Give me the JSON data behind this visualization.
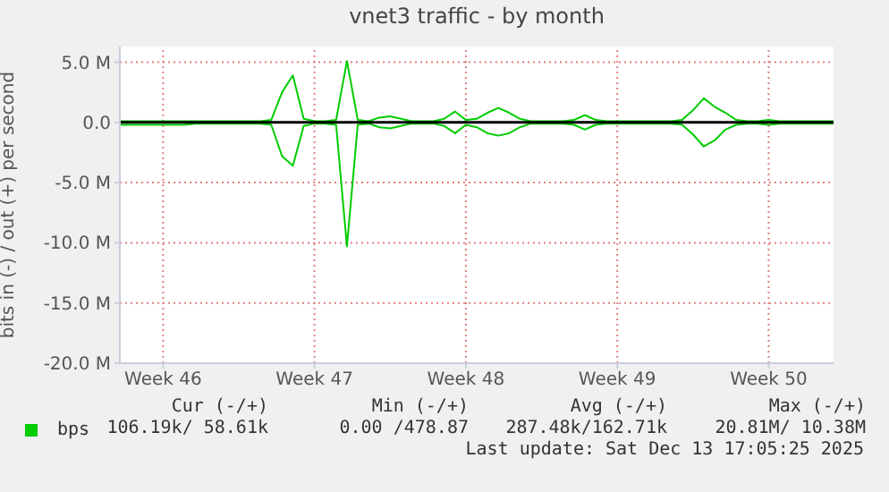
{
  "chart_data": {
    "type": "line",
    "title": "vnet3 traffic - by month",
    "ylabel": "bits in (-) / out (+) per second",
    "categories": [
      null,
      null,
      null,
      null,
      "Week 46",
      null,
      null,
      null,
      null,
      null,
      null,
      null,
      null,
      null,
      null,
      null,
      null,
      null,
      "Week 47",
      null,
      null,
      null,
      null,
      null,
      null,
      null,
      null,
      null,
      null,
      null,
      null,
      null,
      "Week 48",
      null,
      null,
      null,
      null,
      null,
      null,
      null,
      null,
      null,
      null,
      null,
      null,
      null,
      "Week 49",
      null,
      null,
      null,
      null,
      null,
      null,
      null,
      null,
      null,
      null,
      null,
      null,
      null,
      "Week 50",
      null,
      null,
      null,
      null,
      null,
      null
    ],
    "series": [
      {
        "name": "bps",
        "color": "#00cc00",
        "values": [
          0.1,
          0.1,
          0.1,
          0.1,
          0.1,
          0.1,
          0.1,
          0.1,
          0.1,
          0.1,
          0.1,
          0.1,
          0.1,
          0.1,
          0.2,
          2.5,
          3.9,
          0.3,
          0.1,
          0.1,
          0.2,
          5.1,
          0.2,
          0.1,
          0.4,
          0.5,
          0.3,
          0.1,
          0.1,
          0.1,
          0.3,
          0.9,
          0.2,
          0.3,
          0.8,
          1.2,
          0.8,
          0.3,
          0.1,
          0.1,
          0.1,
          0.1,
          0.2,
          0.6,
          0.2,
          0.1,
          0.1,
          0.1,
          0.1,
          0.1,
          0.1,
          0.1,
          0.2,
          1.0,
          2.0,
          1.3,
          0.8,
          0.2,
          0.1,
          0.1,
          0.2,
          0.1,
          0.1,
          0.1,
          0.1,
          0.1,
          0.1
        ]
      },
      {
        "color": "#00cc00",
        "values": [
          -0.2,
          -0.2,
          -0.2,
          -0.2,
          -0.2,
          -0.2,
          -0.2,
          -0.1,
          -0.1,
          -0.1,
          -0.1,
          -0.1,
          -0.1,
          -0.1,
          -0.2,
          -2.8,
          -3.6,
          -0.3,
          -0.1,
          -0.1,
          -0.2,
          -10.3,
          -0.2,
          -0.1,
          -0.4,
          -0.5,
          -0.3,
          -0.1,
          -0.1,
          -0.1,
          -0.3,
          -0.9,
          -0.2,
          -0.4,
          -0.9,
          -1.1,
          -0.9,
          -0.4,
          -0.1,
          -0.1,
          -0.1,
          -0.1,
          -0.2,
          -0.6,
          -0.2,
          -0.1,
          -0.1,
          -0.1,
          -0.1,
          -0.1,
          -0.1,
          -0.1,
          -0.2,
          -1.0,
          -2.0,
          -1.5,
          -0.6,
          -0.2,
          -0.1,
          -0.1,
          -0.2,
          -0.1,
          -0.1,
          -0.1,
          -0.1,
          -0.1,
          -0.1
        ]
      }
    ],
    "ylim": [
      -20,
      6.3
    ],
    "yticks": [
      {
        "value": -20,
        "label": "-20.0 M"
      },
      {
        "value": -15,
        "label": "-15.0 M"
      },
      {
        "value": -10,
        "label": "-10.0 M"
      },
      {
        "value": -5,
        "label": "-5.0 M"
      },
      {
        "value": 0,
        "label": "0.0"
      },
      {
        "value": 5,
        "label": "5.0 M"
      }
    ],
    "grid": true,
    "legend": "bottom",
    "ref_lines": [
      {
        "axis": "y",
        "value": 0,
        "color": "#000000"
      }
    ],
    "annotations": [
      "Cur (-/+)",
      "Min (-/+)",
      "Avg (-/+)",
      "Max (-/+)",
      "106.19k/ 58.61k",
      "0.00 /478.87",
      "287.48k/162.71k",
      "20.81M/ 10.38M",
      "Last update: Sat Dec 13 17:05:25 2025"
    ]
  }
}
